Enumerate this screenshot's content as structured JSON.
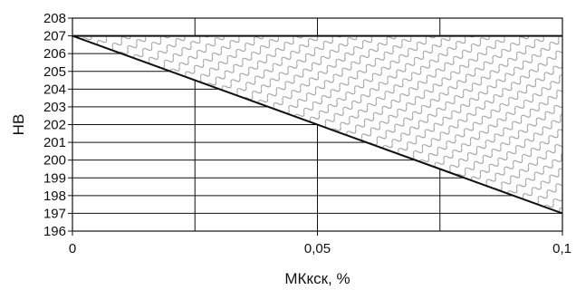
{
  "chart_data": {
    "type": "area",
    "xlabel": "МКкск, %",
    "ylabel": "HB",
    "xlim": [
      0,
      0.1
    ],
    "ylim": [
      196,
      208
    ],
    "x_ticks": [
      0,
      0.05,
      0.1
    ],
    "x_tick_labels": [
      "0",
      "0,05",
      "0,1"
    ],
    "x_minor_gridlines": [
      0.025,
      0.075
    ],
    "y_ticks": [
      196,
      197,
      198,
      199,
      200,
      201,
      202,
      203,
      204,
      205,
      206,
      207,
      208
    ],
    "y_tick_labels": [
      "196",
      "197",
      "198",
      "199",
      "200",
      "201",
      "202",
      "203",
      "204",
      "205",
      "206",
      "207",
      "208"
    ],
    "grid": true,
    "series": [
      {
        "x": [
          0,
          0.1
        ],
        "y": [
          207,
          197
        ]
      }
    ],
    "shaded_region": {
      "upper_y": 207,
      "lower": "line",
      "pattern": "hatched",
      "x_range": [
        0,
        0.1
      ]
    },
    "colors": {
      "line": "#111111",
      "grid": "#111111",
      "hatch": "#9a9a9a"
    }
  }
}
